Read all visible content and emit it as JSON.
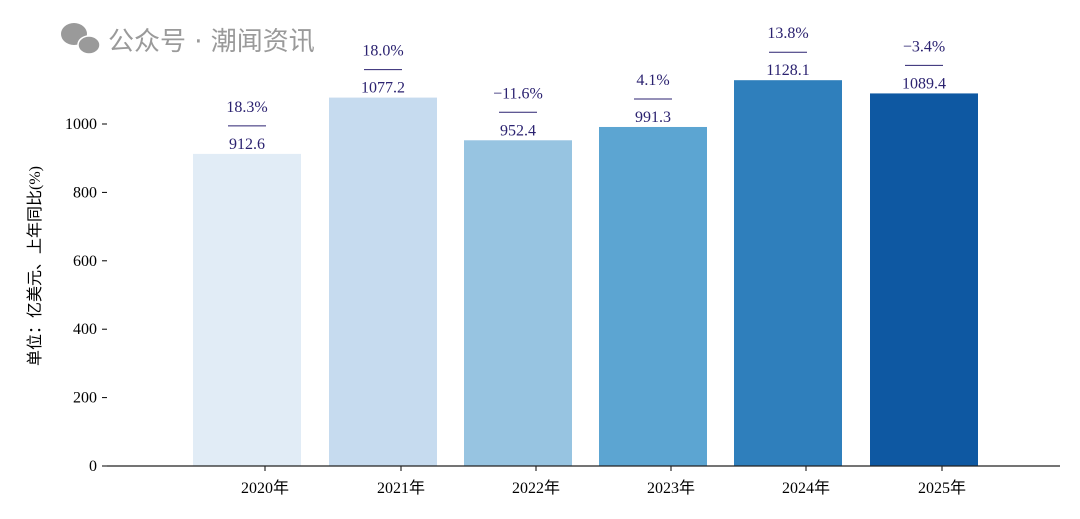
{
  "chart_data": {
    "type": "bar",
    "categories": [
      "2020年",
      "2021年",
      "2022年",
      "2023年",
      "2024年",
      "2025年"
    ],
    "values": [
      912.6,
      1077.2,
      952.4,
      991.3,
      1128.1,
      1089.4
    ],
    "value_labels": [
      "912.6",
      "1077.2",
      "952.4",
      "991.3",
      "1128.1",
      "1089.4"
    ],
    "growth_labels": [
      "18.3%",
      "18.0%",
      "−11.6%",
      "4.1%",
      "13.8%",
      "−3.4%"
    ],
    "colors": [
      "#e1ecf6",
      "#c6dbef",
      "#97c4e1",
      "#5ca5d2",
      "#2f7fbc",
      "#0e58a2"
    ],
    "ylabel": "单位：亿美元、上年同比(%)",
    "xlabel": "",
    "ylim": [
      0,
      1000
    ],
    "yticks": [
      0,
      200,
      400,
      600,
      800,
      1000
    ],
    "grid": false,
    "label_color": "#2b2270"
  },
  "watermark": "公众号 · 潮闻资讯"
}
